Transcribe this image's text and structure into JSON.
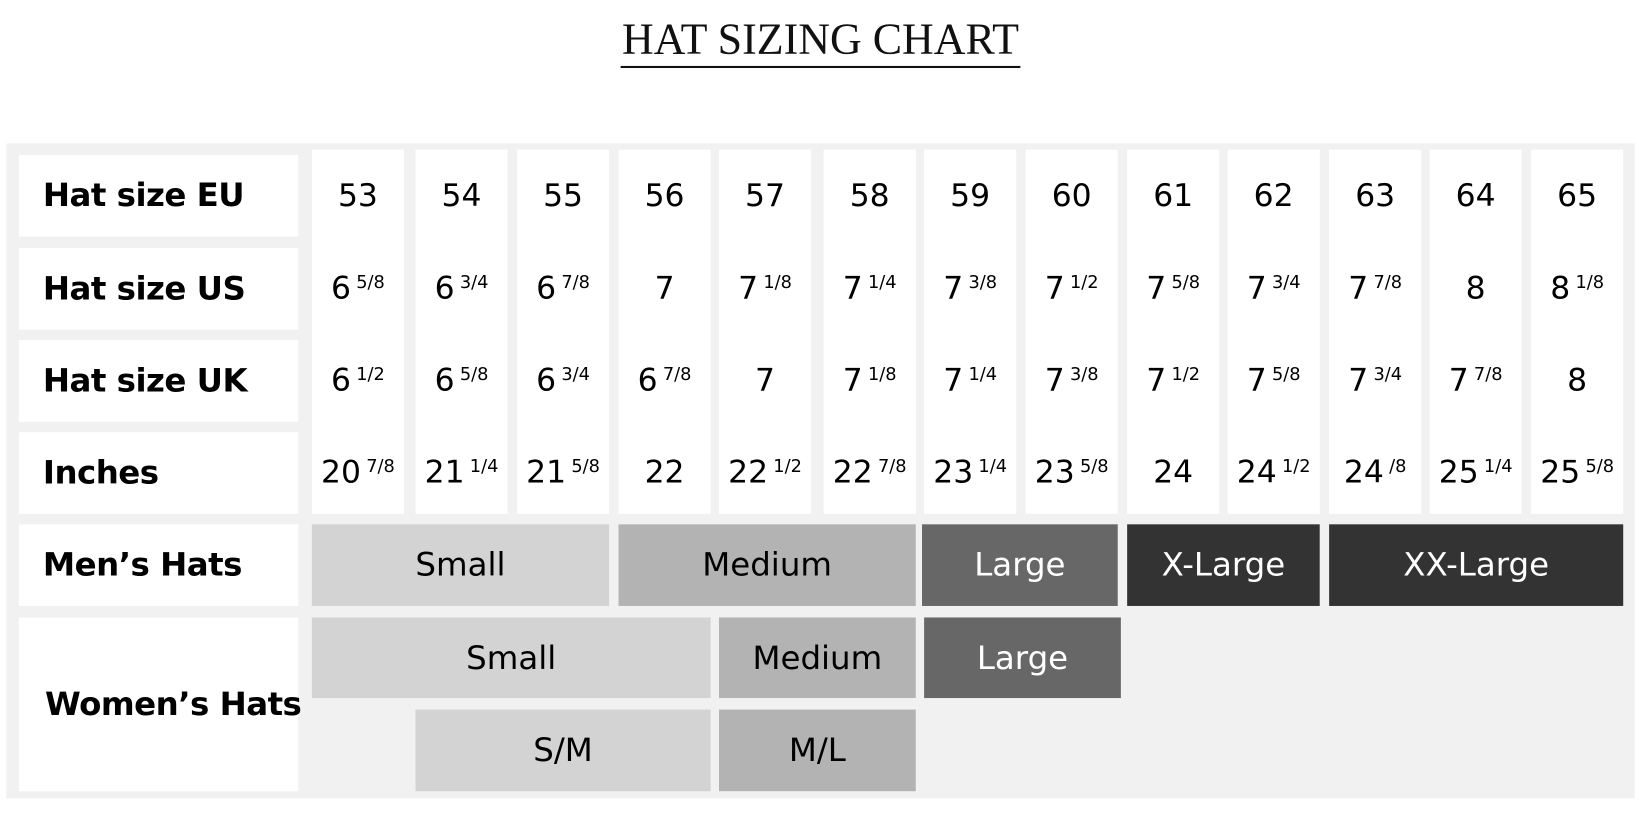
{
  "title": "HAT SIZING CHART",
  "row_labels": {
    "eu": "Hat size EU",
    "us": "Hat size US",
    "uk": "Hat size UK",
    "inches": "Inches",
    "mens": "Men’s Hats",
    "womens": "Women’s Hats"
  },
  "columns": [
    {
      "eu": "53",
      "us": [
        "6",
        "5/8"
      ],
      "uk": [
        "6",
        "1/2"
      ],
      "inches": [
        "20",
        "7/8"
      ]
    },
    {
      "eu": "54",
      "us": [
        "6",
        "3/4"
      ],
      "uk": [
        "6",
        "5/8"
      ],
      "inches": [
        "21",
        "1/4"
      ]
    },
    {
      "eu": "55",
      "us": [
        "6",
        "7/8"
      ],
      "uk": [
        "6",
        "3/4"
      ],
      "inches": [
        "21",
        "5/8"
      ]
    },
    {
      "eu": "56",
      "us": [
        "7",
        ""
      ],
      "uk": [
        "6",
        "7/8"
      ],
      "inches": [
        "22",
        ""
      ]
    },
    {
      "eu": "57",
      "us": [
        "7",
        "1/8"
      ],
      "uk": [
        "7",
        ""
      ],
      "inches": [
        "22",
        "1/2"
      ]
    },
    {
      "eu": "58",
      "us": [
        "7",
        "1/4"
      ],
      "uk": [
        "7",
        "1/8"
      ],
      "inches": [
        "22",
        "7/8"
      ]
    },
    {
      "eu": "59",
      "us": [
        "7",
        "3/8"
      ],
      "uk": [
        "7",
        "1/4"
      ],
      "inches": [
        "23",
        "1/4"
      ]
    },
    {
      "eu": "60",
      "us": [
        "7",
        "1/2"
      ],
      "uk": [
        "7",
        "3/8"
      ],
      "inches": [
        "23",
        "5/8"
      ]
    },
    {
      "eu": "61",
      "us": [
        "7",
        "5/8"
      ],
      "uk": [
        "7",
        "1/2"
      ],
      "inches": [
        "24",
        ""
      ]
    },
    {
      "eu": "62",
      "us": [
        "7",
        "3/4"
      ],
      "uk": [
        "7",
        "5/8"
      ],
      "inches": [
        "24",
        "1/2"
      ]
    },
    {
      "eu": "63",
      "us": [
        "7",
        "7/8"
      ],
      "uk": [
        "7",
        "3/4"
      ],
      "inches": [
        "24",
        "/8"
      ]
    },
    {
      "eu": "64",
      "us": [
        "8",
        ""
      ],
      "uk": [
        "7",
        "7/8"
      ],
      "inches": [
        "25",
        "1/4"
      ]
    },
    {
      "eu": "65",
      "us": [
        "8",
        "1/8"
      ],
      "uk": [
        "8",
        ""
      ],
      "inches": [
        "25",
        "5/8"
      ]
    }
  ],
  "mens_sizes": [
    {
      "label": "Small",
      "color": "#d4d3d4",
      "text": "#000000"
    },
    {
      "label": "Medium",
      "color": "#b3b3b3",
      "text": "#000000"
    },
    {
      "label": "Large",
      "color": "#676767",
      "text": "#ffffff"
    },
    {
      "label": "X-Large",
      "color": "#333333",
      "text": "#ffffff"
    },
    {
      "label": "XX-Large",
      "color": "#333333",
      "text": "#ffffff"
    }
  ],
  "womens_sizes": [
    {
      "label": "Small",
      "color": "#d4d3d4",
      "text": "#000000"
    },
    {
      "label": "Medium",
      "color": "#b3b3b3",
      "text": "#000000"
    },
    {
      "label": "Large",
      "color": "#676767",
      "text": "#ffffff"
    },
    {
      "label": "S/M",
      "color": "#d4d3d4",
      "text": "#000000"
    },
    {
      "label": "M/L",
      "color": "#b3b3b3",
      "text": "#000000"
    }
  ]
}
